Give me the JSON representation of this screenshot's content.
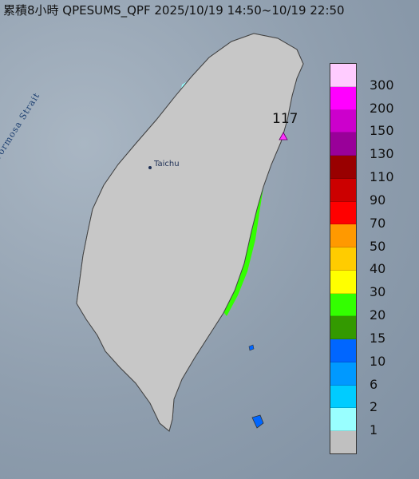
{
  "header": {
    "title": "累積8小時 QPESUMS_QPF 2025/10/19 14:50~10/19 22:50"
  },
  "map": {
    "strait_label": "Formosa Strait",
    "city_label": "Taichu",
    "max_value_label": "117",
    "max_marker_color": "#ff33ff",
    "land_color": "#c7c7c7",
    "sea_color": "#8f9eae"
  },
  "legend": {
    "items": [
      {
        "label": "300",
        "color": "#ffccff"
      },
      {
        "label": "200",
        "color": "#ff00ff"
      },
      {
        "label": "150",
        "color": "#cc00cc"
      },
      {
        "label": "130",
        "color": "#990099"
      },
      {
        "label": "110",
        "color": "#990000"
      },
      {
        "label": "90",
        "color": "#cc0000"
      },
      {
        "label": "70",
        "color": "#ff0000"
      },
      {
        "label": "50",
        "color": "#ff9900"
      },
      {
        "label": "40",
        "color": "#ffcc00"
      },
      {
        "label": "30",
        "color": "#ffff00"
      },
      {
        "label": "20",
        "color": "#33ff00"
      },
      {
        "label": "15",
        "color": "#339900"
      },
      {
        "label": "10",
        "color": "#0066ff"
      },
      {
        "label": "6",
        "color": "#0099ff"
      },
      {
        "label": "2",
        "color": "#00ccff"
      },
      {
        "label": "1",
        "color": "#99ffff"
      },
      {
        "label": "",
        "color": "#c0c0c0"
      }
    ]
  }
}
